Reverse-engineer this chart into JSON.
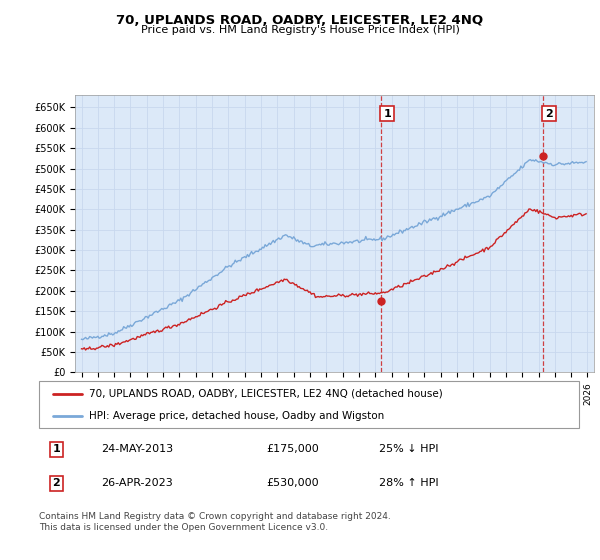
{
  "title": "70, UPLANDS ROAD, OADBY, LEICESTER, LE2 4NQ",
  "subtitle": "Price paid vs. HM Land Registry's House Price Index (HPI)",
  "ylabel_ticks": [
    "£0",
    "£50K",
    "£100K",
    "£150K",
    "£200K",
    "£250K",
    "£300K",
    "£350K",
    "£400K",
    "£450K",
    "£500K",
    "£550K",
    "£600K",
    "£650K"
  ],
  "ytick_vals": [
    0,
    50000,
    100000,
    150000,
    200000,
    250000,
    300000,
    350000,
    400000,
    450000,
    500000,
    550000,
    600000,
    650000
  ],
  "ylim": [
    0,
    680000
  ],
  "x_start_year": 1995,
  "x_end_year": 2026,
  "hpi_color": "#7aa8d8",
  "price_color": "#cc2222",
  "vline_color": "#cc2222",
  "grid_color": "#c8d8ee",
  "plot_bg_color": "#dce9f8",
  "legend_line1": "70, UPLANDS ROAD, OADBY, LEICESTER, LE2 4NQ (detached house)",
  "legend_line2": "HPI: Average price, detached house, Oadby and Wigston",
  "table_row1": [
    "1",
    "24-MAY-2013",
    "£175,000",
    "25% ↓ HPI"
  ],
  "table_row2": [
    "2",
    "26-APR-2023",
    "£530,000",
    "28% ↑ HPI"
  ],
  "footnote": "Contains HM Land Registry data © Crown copyright and database right 2024.\nThis data is licensed under the Open Government Licence v3.0."
}
